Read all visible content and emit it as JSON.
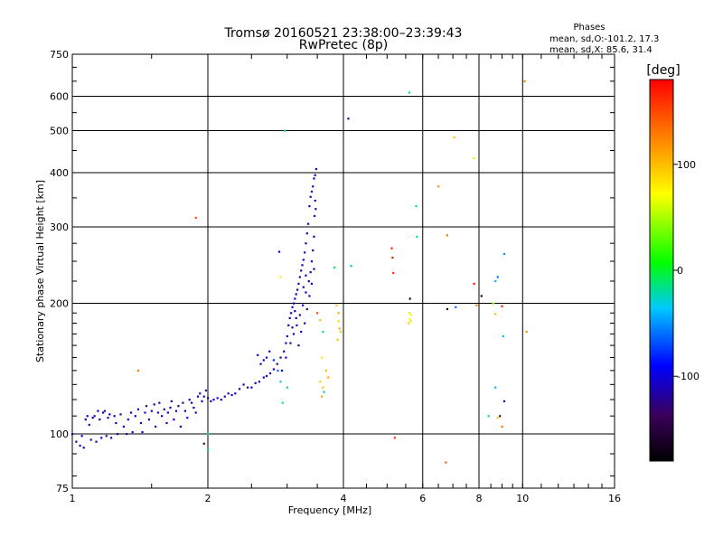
{
  "chart_data": {
    "type": "scatter",
    "title": "Tromsø 20160521 23:38:00–23:39:43",
    "subtitle": "RwPretec (8p)",
    "phases_header": {
      "title": "Phases",
      "line_o": "mean, sd,O:-101.2, 17.3",
      "line_x": "mean, sd,X:  85.6, 31.4"
    },
    "xlabel": "Frequency [MHz]",
    "ylabel": "Stationary phase Virtual Height [km]",
    "x_scale": "log",
    "y_scale": "log",
    "xlim": [
      1,
      16
    ],
    "ylim": [
      75,
      750
    ],
    "x_ticks": [
      {
        "value": 1,
        "label": "1"
      },
      {
        "value": 2,
        "label": "2"
      },
      {
        "value": 4,
        "label": "4"
      },
      {
        "value": 6,
        "label": "6"
      },
      {
        "value": 8,
        "label": "8"
      },
      {
        "value": 10,
        "label": "10"
      },
      {
        "value": 16,
        "label": "16"
      }
    ],
    "y_ticks": [
      {
        "value": 75,
        "label": "75"
      },
      {
        "value": 100,
        "label": "100"
      },
      {
        "value": 200,
        "label": "200"
      },
      {
        "value": 300,
        "label": "300"
      },
      {
        "value": 400,
        "label": "400"
      },
      {
        "value": 500,
        "label": "500"
      },
      {
        "value": 600,
        "label": "600"
      },
      {
        "value": 750,
        "label": "750"
      }
    ],
    "grid_x": [
      2,
      4,
      6,
      8,
      10
    ],
    "grid_y": [
      100,
      200,
      300,
      400,
      500,
      600
    ],
    "grid": true,
    "colorbar": {
      "label": "[deg]",
      "range": [
        -180,
        180
      ],
      "ticks": [
        {
          "value": 100,
          "label": "100"
        },
        {
          "value": 0,
          "label": "0"
        },
        {
          "value": -100,
          "label": "-100"
        }
      ],
      "colors": [
        "#000000",
        "#3a005a",
        "#0000ff",
        "#00c8ff",
        "#00ff00",
        "#ffff00",
        "#ff8800",
        "#ff0000"
      ]
    },
    "points": [
      [
        1.0,
        100,
        -110
      ],
      [
        1.02,
        96,
        -105
      ],
      [
        1.04,
        94,
        -115
      ],
      [
        1.05,
        99,
        -100
      ],
      [
        1.06,
        93,
        -120
      ],
      [
        1.07,
        108,
        -110
      ],
      [
        1.08,
        110,
        -105
      ],
      [
        1.09,
        105,
        -112
      ],
      [
        1.1,
        97,
        -118
      ],
      [
        1.11,
        109,
        -108
      ],
      [
        1.12,
        110,
        -110
      ],
      [
        1.13,
        96,
        -115
      ],
      [
        1.14,
        113,
        -105
      ],
      [
        1.15,
        108,
        -110
      ],
      [
        1.16,
        98,
        -112
      ],
      [
        1.17,
        112,
        -108
      ],
      [
        1.18,
        113,
        -110
      ],
      [
        1.19,
        99,
        -114
      ],
      [
        1.2,
        109,
        -106
      ],
      [
        1.21,
        111,
        -110
      ],
      [
        1.22,
        98,
        -112
      ],
      [
        1.24,
        110,
        -108
      ],
      [
        1.25,
        106,
        -110
      ],
      [
        1.26,
        100,
        -115
      ],
      [
        1.28,
        111,
        -105
      ],
      [
        1.3,
        104,
        -110
      ],
      [
        1.32,
        100,
        -112
      ],
      [
        1.33,
        108,
        -108
      ],
      [
        1.35,
        112,
        -110
      ],
      [
        1.36,
        101,
        -115
      ],
      [
        1.38,
        110,
        -106
      ],
      [
        1.4,
        114,
        -110
      ],
      [
        1.42,
        106,
        -112
      ],
      [
        1.43,
        101,
        -108
      ],
      [
        1.45,
        112,
        -110
      ],
      [
        1.46,
        116,
        -115
      ],
      [
        1.48,
        108,
        -105
      ],
      [
        1.5,
        113,
        -110
      ],
      [
        1.52,
        117,
        -112
      ],
      [
        1.53,
        104,
        -108
      ],
      [
        1.55,
        112,
        -110
      ],
      [
        1.56,
        118,
        -114
      ],
      [
        1.58,
        110,
        -106
      ],
      [
        1.6,
        114,
        -110
      ],
      [
        1.62,
        106,
        -112
      ],
      [
        1.63,
        112,
        -108
      ],
      [
        1.65,
        115,
        -110
      ],
      [
        1.66,
        119,
        -115
      ],
      [
        1.68,
        108,
        -106
      ],
      [
        1.7,
        113,
        -110
      ],
      [
        1.72,
        116,
        -112
      ],
      [
        1.74,
        104,
        -108
      ],
      [
        1.76,
        118,
        -110
      ],
      [
        1.78,
        113,
        -114
      ],
      [
        1.8,
        109,
        -106
      ],
      [
        1.82,
        120,
        -110
      ],
      [
        1.84,
        118,
        -112
      ],
      [
        1.86,
        115,
        -108
      ],
      [
        1.88,
        112,
        -110
      ],
      [
        1.9,
        122,
        -115
      ],
      [
        1.92,
        124,
        -105
      ],
      [
        1.94,
        119,
        -110
      ],
      [
        1.96,
        122,
        -112
      ],
      [
        1.98,
        126,
        -108
      ],
      [
        2.0,
        121,
        -110
      ],
      [
        2.03,
        119,
        -114
      ],
      [
        2.06,
        120,
        -106
      ],
      [
        2.1,
        121,
        -110
      ],
      [
        2.14,
        120,
        -112
      ],
      [
        2.18,
        122,
        -108
      ],
      [
        2.22,
        124,
        -110
      ],
      [
        2.26,
        123,
        -115
      ],
      [
        2.3,
        124,
        -106
      ],
      [
        2.35,
        127,
        -110
      ],
      [
        2.4,
        130,
        -112
      ],
      [
        2.45,
        128,
        -108
      ],
      [
        2.5,
        128,
        -110
      ],
      [
        2.55,
        131,
        -114
      ],
      [
        2.6,
        132,
        -106
      ],
      [
        2.66,
        135,
        -110
      ],
      [
        2.7,
        136,
        -112
      ],
      [
        2.75,
        138,
        -108
      ],
      [
        2.8,
        141,
        -110
      ],
      [
        2.85,
        145,
        -115
      ],
      [
        2.9,
        150,
        -105
      ],
      [
        2.95,
        155,
        -110
      ],
      [
        2.98,
        162,
        -112
      ],
      [
        3.0,
        168,
        -108
      ],
      [
        3.02,
        178,
        -110
      ],
      [
        3.04,
        185,
        -114
      ],
      [
        3.06,
        190,
        -106
      ],
      [
        3.08,
        196,
        -110
      ],
      [
        3.1,
        200,
        -112
      ],
      [
        3.12,
        205,
        -108
      ],
      [
        3.14,
        210,
        -110
      ],
      [
        3.16,
        215,
        -115
      ],
      [
        3.18,
        222,
        -106
      ],
      [
        3.2,
        230,
        -110
      ],
      [
        3.22,
        238,
        -112
      ],
      [
        3.24,
        245,
        -108
      ],
      [
        3.26,
        252,
        -110
      ],
      [
        3.28,
        262,
        -114
      ],
      [
        3.3,
        275,
        -106
      ],
      [
        3.32,
        290,
        -110
      ],
      [
        3.34,
        305,
        -112
      ],
      [
        3.36,
        335,
        -108
      ],
      [
        3.38,
        352,
        -110
      ],
      [
        3.4,
        362,
        -115
      ],
      [
        3.42,
        372,
        -105
      ],
      [
        3.44,
        388,
        -110
      ],
      [
        3.46,
        395,
        -112
      ],
      [
        3.48,
        408,
        -108
      ],
      [
        3.46,
        345,
        -110
      ],
      [
        3.47,
        330,
        -114
      ],
      [
        3.45,
        318,
        -106
      ],
      [
        3.44,
        285,
        -110
      ],
      [
        3.42,
        265,
        -112
      ],
      [
        3.4,
        250,
        -108
      ],
      [
        3.38,
        236,
        -110
      ],
      [
        3.35,
        225,
        -115
      ],
      [
        3.3,
        212,
        -106
      ],
      [
        3.25,
        198,
        -110
      ],
      [
        3.2,
        188,
        -112
      ],
      [
        3.15,
        178,
        -108
      ],
      [
        3.1,
        170,
        -110
      ],
      [
        3.05,
        162,
        -114
      ],
      [
        2.98,
        150,
        -106
      ],
      [
        2.92,
        140,
        -110
      ],
      [
        3.18,
        160,
        -112
      ],
      [
        3.22,
        172,
        -108
      ],
      [
        3.28,
        180,
        -110
      ],
      [
        3.32,
        194,
        -115
      ],
      [
        3.36,
        208,
        -106
      ],
      [
        3.4,
        222,
        -110
      ],
      [
        3.44,
        240,
        -112
      ],
      [
        3.12,
        192,
        -108
      ],
      [
        3.08,
        176,
        -110
      ],
      [
        3.14,
        185,
        -114
      ],
      [
        3.26,
        218,
        -106
      ],
      [
        3.3,
        232,
        -110
      ],
      [
        2.62,
        145,
        -108
      ],
      [
        2.66,
        148,
        -110
      ],
      [
        2.58,
        152,
        -112
      ],
      [
        2.7,
        150,
        -108
      ],
      [
        2.74,
        155,
        -110
      ],
      [
        2.8,
        148,
        -80
      ],
      [
        2.86,
        140,
        -60
      ],
      [
        2.9,
        132,
        -30
      ],
      [
        2.93,
        118,
        -10
      ],
      [
        3.0,
        128,
        -20
      ],
      [
        1.96,
        95,
        -140
      ],
      [
        2.0,
        92,
        -10
      ],
      [
        2.0,
        100,
        -15
      ],
      [
        1.88,
        315,
        150
      ],
      [
        1.4,
        140,
        130
      ],
      [
        2.88,
        263,
        -100
      ],
      [
        2.9,
        230,
        80
      ],
      [
        2.96,
        500,
        -10
      ],
      [
        3.5,
        190,
        150
      ],
      [
        3.55,
        183,
        100
      ],
      [
        3.6,
        172,
        -20
      ],
      [
        3.58,
        150,
        80
      ],
      [
        3.55,
        132,
        90
      ],
      [
        3.6,
        128,
        100
      ],
      [
        3.58,
        122,
        110
      ],
      [
        3.66,
        140,
        100
      ],
      [
        3.7,
        135,
        110
      ],
      [
        3.62,
        125,
        -15
      ],
      [
        3.82,
        242,
        -10
      ],
      [
        3.86,
        198,
        100
      ],
      [
        3.9,
        182,
        90
      ],
      [
        3.92,
        175,
        110
      ],
      [
        3.88,
        165,
        100
      ],
      [
        3.94,
        172,
        95
      ],
      [
        3.9,
        190,
        105
      ],
      [
        4.1,
        533,
        -120
      ],
      [
        4.16,
        244,
        -40
      ],
      [
        5.12,
        268,
        170
      ],
      [
        5.14,
        255,
        170
      ],
      [
        5.16,
        235,
        160
      ],
      [
        5.2,
        98,
        160
      ],
      [
        5.6,
        612,
        -15
      ],
      [
        5.62,
        205,
        -170
      ],
      [
        5.6,
        190,
        80
      ],
      [
        5.62,
        184,
        70
      ],
      [
        5.65,
        188,
        75
      ],
      [
        5.58,
        180,
        90
      ],
      [
        5.64,
        182,
        85
      ],
      [
        5.8,
        335,
        -20
      ],
      [
        5.82,
        285,
        -10
      ],
      [
        6.5,
        372,
        120
      ],
      [
        6.8,
        287,
        130
      ],
      [
        6.75,
        86,
        140
      ],
      [
        6.8,
        194,
        -170
      ],
      [
        7.1,
        196,
        -60
      ],
      [
        7.05,
        483,
        100
      ],
      [
        7.8,
        432,
        60
      ],
      [
        7.8,
        222,
        170
      ],
      [
        7.9,
        198,
        130
      ],
      [
        8.1,
        208,
        -170
      ],
      [
        8.4,
        110,
        -20
      ],
      [
        8.6,
        200,
        50
      ],
      [
        8.7,
        225,
        -40
      ],
      [
        8.8,
        230,
        -60
      ],
      [
        8.7,
        189,
        100
      ],
      [
        8.8,
        109,
        100
      ],
      [
        8.7,
        128,
        -40
      ],
      [
        8.9,
        110,
        -140
      ],
      [
        9.0,
        197,
        170
      ],
      [
        9.1,
        260,
        -50
      ],
      [
        9.05,
        168,
        -40
      ],
      [
        9.0,
        104,
        130
      ],
      [
        9.1,
        119,
        -100
      ],
      [
        10.1,
        650,
        130
      ],
      [
        10.2,
        172,
        120
      ]
    ]
  }
}
